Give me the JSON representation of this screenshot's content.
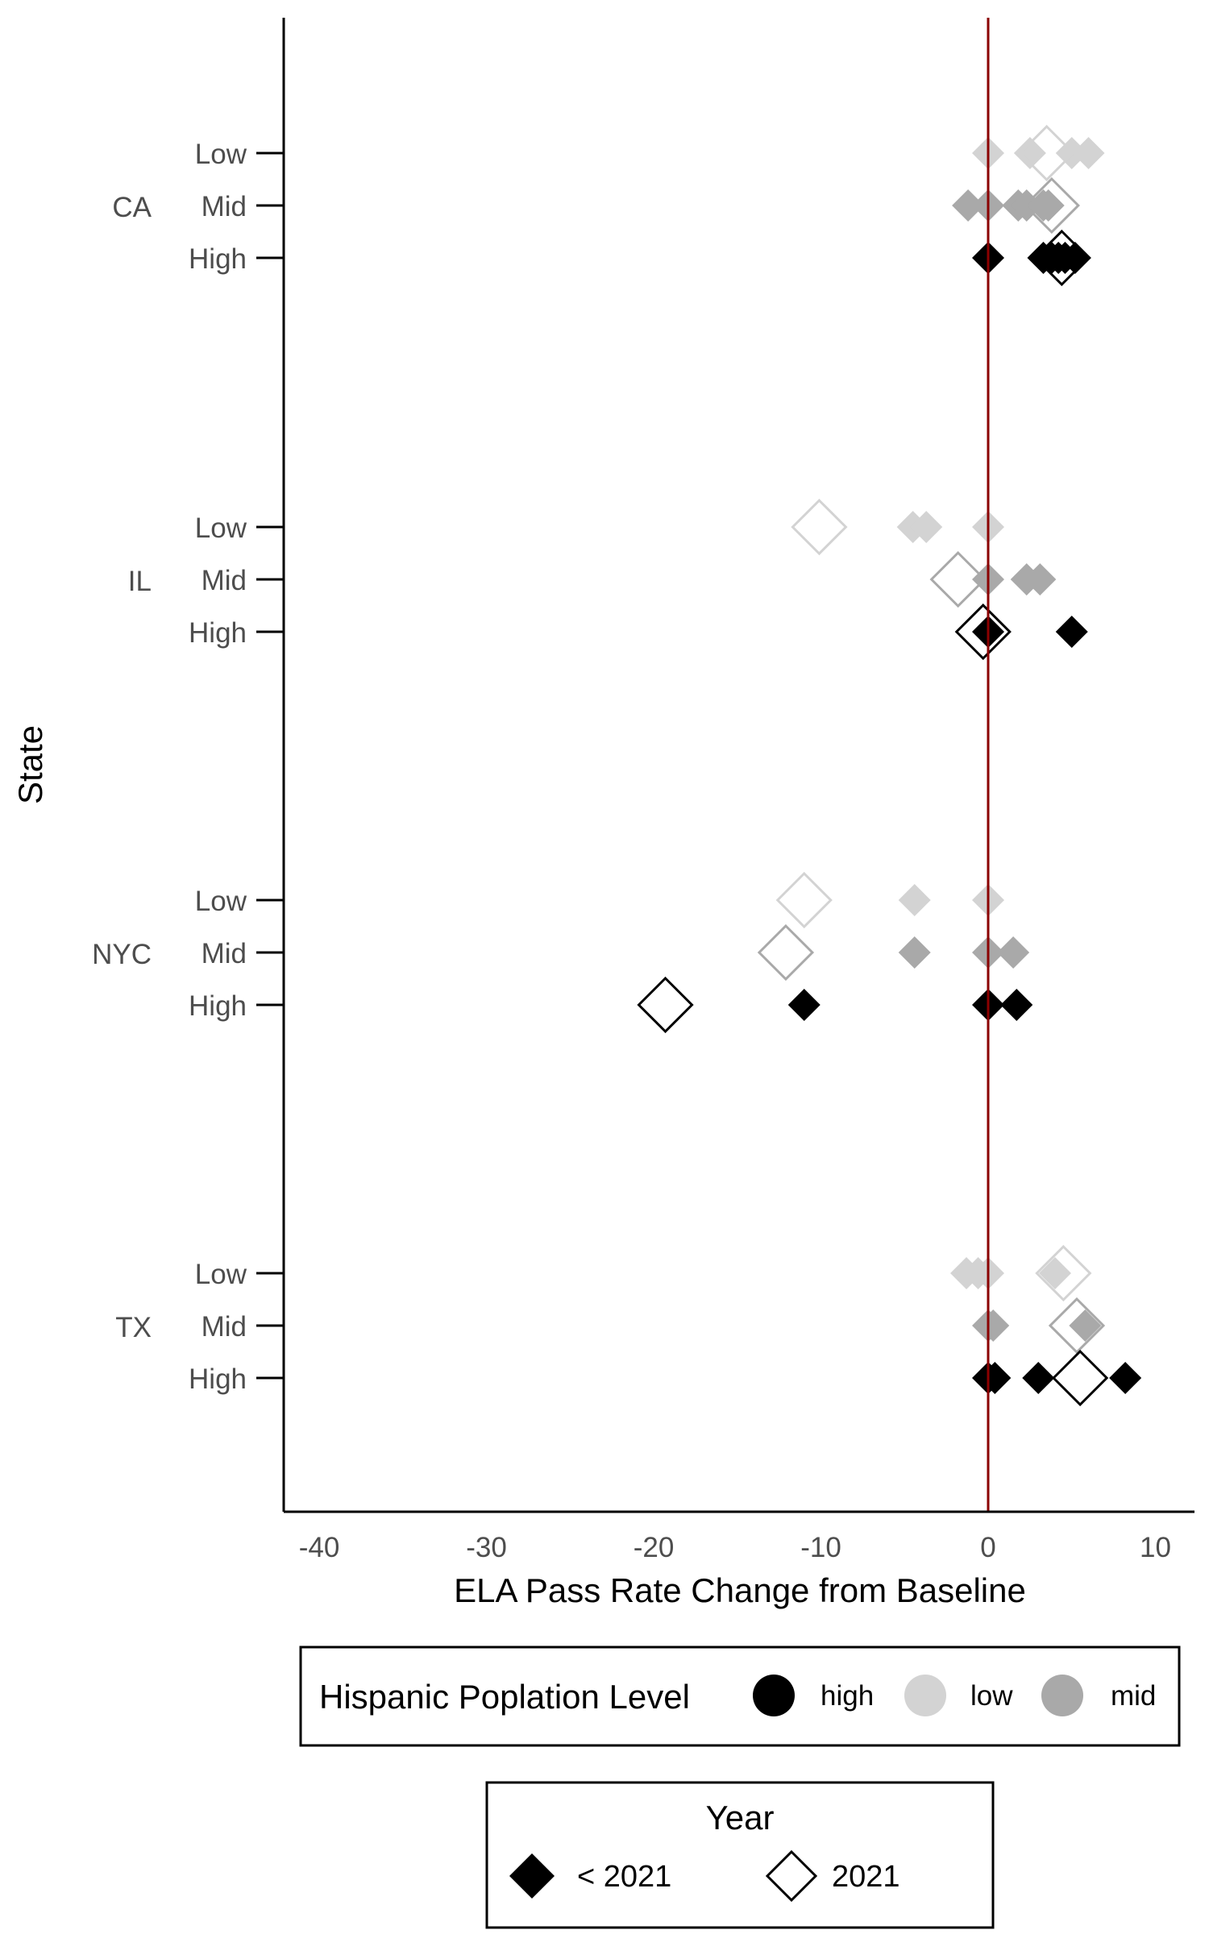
{
  "chart_data": {
    "type": "scatter",
    "title": "",
    "xlabel": "ELA Pass Rate Change from Baseline",
    "ylabel": "State",
    "xlim": [
      -40,
      10
    ],
    "x_ticks": [
      -40,
      -30,
      -20,
      -10,
      0,
      10
    ],
    "x_tick_labels": [
      "-40",
      "-30",
      "-20",
      "-10",
      "0",
      "10"
    ],
    "reference_line": {
      "x": 0,
      "color": "#8b0000"
    },
    "grid": false,
    "states": [
      "CA",
      "IL",
      "NYC",
      "TX"
    ],
    "levels": [
      "Low",
      "Mid",
      "High"
    ],
    "level_colors": {
      "high": "#000000",
      "low": "#d3d3d3",
      "mid": "#a9a9a9"
    },
    "points": [
      {
        "state": "CA",
        "level": "Low",
        "year": "< 2021",
        "x": [
          0,
          2.5,
          5,
          6
        ]
      },
      {
        "state": "CA",
        "level": "Low",
        "year": "2021",
        "x": [
          3.5
        ]
      },
      {
        "state": "CA",
        "level": "Mid",
        "year": "< 2021",
        "x": [
          -1.2,
          0,
          1.8,
          2.3,
          3.3,
          3.6
        ]
      },
      {
        "state": "CA",
        "level": "Mid",
        "year": "2021",
        "x": [
          3.8
        ]
      },
      {
        "state": "CA",
        "level": "High",
        "year": "< 2021",
        "x": [
          0,
          3.3,
          3.8,
          4.2,
          4.6,
          5.2
        ]
      },
      {
        "state": "CA",
        "level": "High",
        "year": "2021",
        "x": [
          4.4
        ]
      },
      {
        "state": "IL",
        "level": "Low",
        "year": "< 2021",
        "x": [
          -4.5,
          -3.7,
          0
        ]
      },
      {
        "state": "IL",
        "level": "Low",
        "year": "2021",
        "x": [
          -10.1
        ]
      },
      {
        "state": "IL",
        "level": "Mid",
        "year": "< 2021",
        "x": [
          0,
          2.3,
          3.1
        ]
      },
      {
        "state": "IL",
        "level": "Mid",
        "year": "2021",
        "x": [
          -1.8
        ]
      },
      {
        "state": "IL",
        "level": "High",
        "year": "< 2021",
        "x": [
          0,
          5
        ]
      },
      {
        "state": "IL",
        "level": "High",
        "year": "2021",
        "x": [
          -0.3
        ]
      },
      {
        "state": "NYC",
        "level": "Low",
        "year": "< 2021",
        "x": [
          -4.4,
          0
        ]
      },
      {
        "state": "NYC",
        "level": "Low",
        "year": "2021",
        "x": [
          -11
        ]
      },
      {
        "state": "NYC",
        "level": "Mid",
        "year": "< 2021",
        "x": [
          -4.4,
          0,
          1.5
        ]
      },
      {
        "state": "NYC",
        "level": "Mid",
        "year": "2021",
        "x": [
          -12.1
        ]
      },
      {
        "state": "NYC",
        "level": "High",
        "year": "< 2021",
        "x": [
          -11,
          0,
          1.7
        ]
      },
      {
        "state": "NYC",
        "level": "High",
        "year": "2021",
        "x": [
          -19.3
        ]
      },
      {
        "state": "TX",
        "level": "Low",
        "year": "< 2021",
        "x": [
          -1.3,
          -0.6,
          0,
          4
        ]
      },
      {
        "state": "TX",
        "level": "Low",
        "year": "2021",
        "x": [
          4.5
        ]
      },
      {
        "state": "TX",
        "level": "Mid",
        "year": "< 2021",
        "x": [
          0,
          0.3,
          5.8
        ]
      },
      {
        "state": "TX",
        "level": "Mid",
        "year": "2021",
        "x": [
          5.3
        ]
      },
      {
        "state": "TX",
        "level": "High",
        "year": "< 2021",
        "x": [
          0,
          0.4,
          3,
          8.2
        ]
      },
      {
        "state": "TX",
        "level": "High",
        "year": "2021",
        "x": [
          5.5
        ]
      }
    ],
    "legend_color": {
      "title": "Hispanic Poplation Level",
      "entries": [
        {
          "label": "high",
          "color": "#000000"
        },
        {
          "label": "low",
          "color": "#d3d3d3"
        },
        {
          "label": "mid",
          "color": "#a9a9a9"
        }
      ],
      "position": "bottom"
    },
    "legend_shape": {
      "title": "Year",
      "entries": [
        {
          "label": "< 2021",
          "filled": true
        },
        {
          "label": "2021",
          "filled": false
        }
      ],
      "position": "bottom"
    }
  }
}
